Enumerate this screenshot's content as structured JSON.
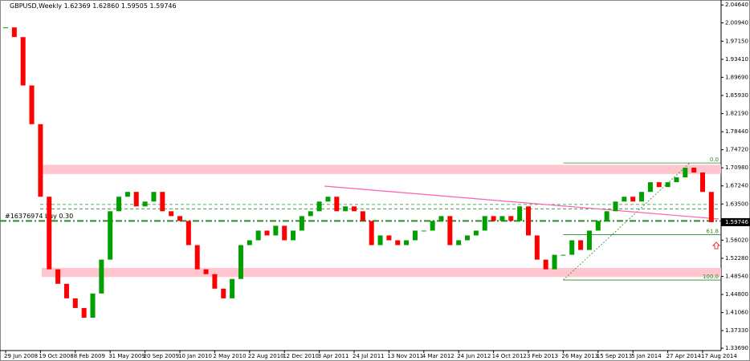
{
  "chart_data": {
    "type": "candlestick",
    "title": "GBPUSD,Weekly",
    "header_values": [
      "1.62369",
      "1.62860",
      "1.59505",
      "1.59746"
    ],
    "categories": [
      "29 Jun 2008",
      null,
      null,
      null,
      "19 Oct 2008",
      null,
      null,
      null,
      "8 Feb 2009",
      null,
      null,
      null,
      "31 May 2009",
      null,
      null,
      null,
      "20 Sep 2009",
      null,
      null,
      null,
      "10 Jan 2010",
      null,
      null,
      null,
      "2 May 2010",
      null,
      null,
      null,
      "22 Aug 2010",
      null,
      null,
      null,
      "12 Dec 2010",
      null,
      null,
      null,
      "3 Apr 2011",
      null,
      null,
      null,
      "24 Jul 2011",
      null,
      null,
      null,
      "13 Nov 2011",
      null,
      null,
      null,
      "4 Mar 2012",
      null,
      null,
      null,
      "24 Jun 2012",
      null,
      null,
      null,
      "14 Oct 2012",
      null,
      null,
      null,
      "3 Feb 2013",
      null,
      null,
      null,
      "26 May 2013",
      null,
      null,
      null,
      "15 Sep 2013",
      null,
      null,
      null,
      "5 Jan 2014",
      null,
      null,
      null,
      "27 Apr 2014",
      null,
      null,
      null,
      "17 Aug 2014",
      null
    ],
    "values": [
      2.0,
      1.98,
      1.88,
      1.8,
      1.65,
      1.5,
      1.47,
      1.44,
      1.42,
      1.4,
      1.45,
      1.52,
      1.62,
      1.65,
      1.66,
      1.63,
      1.64,
      1.66,
      1.62,
      1.61,
      1.6,
      1.55,
      1.5,
      1.49,
      1.46,
      1.44,
      1.48,
      1.55,
      1.56,
      1.58,
      1.57,
      1.59,
      1.56,
      1.58,
      1.61,
      1.62,
      1.64,
      1.65,
      1.62,
      1.63,
      1.62,
      1.6,
      1.55,
      1.57,
      1.56,
      1.55,
      1.56,
      1.58,
      1.58,
      1.6,
      1.61,
      1.55,
      1.56,
      1.57,
      1.58,
      1.61,
      1.6,
      1.61,
      1.6,
      1.63,
      1.57,
      1.52,
      1.5,
      1.53,
      1.53,
      1.56,
      1.54,
      1.58,
      1.6,
      1.62,
      1.64,
      1.65,
      1.64,
      1.66,
      1.68,
      1.67,
      1.68,
      1.69,
      1.71,
      1.7,
      1.66,
      1.59746
    ],
    "up_color": "#00a000",
    "down_color": "#ff0000",
    "ylim": [
      1.332,
      2.055
    ],
    "yticks": [
      {
        "value": 2.0464,
        "label": "2.04640"
      },
      {
        "value": 2.0094,
        "label": "2.00940"
      },
      {
        "value": 1.9715,
        "label": "1.97150"
      },
      {
        "value": 1.9341,
        "label": "1.93410"
      },
      {
        "value": 1.8969,
        "label": "1.89690"
      },
      {
        "value": 1.8593,
        "label": "1.85930"
      },
      {
        "value": 1.8219,
        "label": "1.82190"
      },
      {
        "value": 1.7844,
        "label": "1.78440"
      },
      {
        "value": 1.7472,
        "label": "1.74720"
      },
      {
        "value": 1.7098,
        "label": "1.70980"
      },
      {
        "value": 1.6724,
        "label": "1.67240"
      },
      {
        "value": 1.635,
        "label": "1.63500"
      },
      {
        "value": 1.5602,
        "label": "1.56020"
      },
      {
        "value": 1.5228,
        "label": "1.52280"
      },
      {
        "value": 1.4854,
        "label": "1.48540"
      },
      {
        "value": 1.448,
        "label": "1.44800"
      },
      {
        "value": 1.4106,
        "label": "1.41060"
      },
      {
        "value": 1.3733,
        "label": "1.37330"
      },
      {
        "value": 1.3369,
        "label": "1.33690"
      }
    ],
    "zones": [
      {
        "from": 1.697,
        "to": 1.716,
        "color": "#ffc0cb"
      },
      {
        "from": 1.484,
        "to": 1.503,
        "color": "#ffc0cb"
      }
    ],
    "levels": [
      1.634,
      1.625
    ],
    "position": {
      "value": 1.6,
      "label": "#16376974 buy 0.30"
    },
    "fib_levels": [
      {
        "value": 1.7198,
        "label": "0.0"
      },
      {
        "value": 1.5715,
        "label": "61.8"
      },
      {
        "value": 1.4778,
        "label": "100.0"
      }
    ],
    "trendline": {
      "from": 1.672,
      "to": 1.604
    }
  }
}
